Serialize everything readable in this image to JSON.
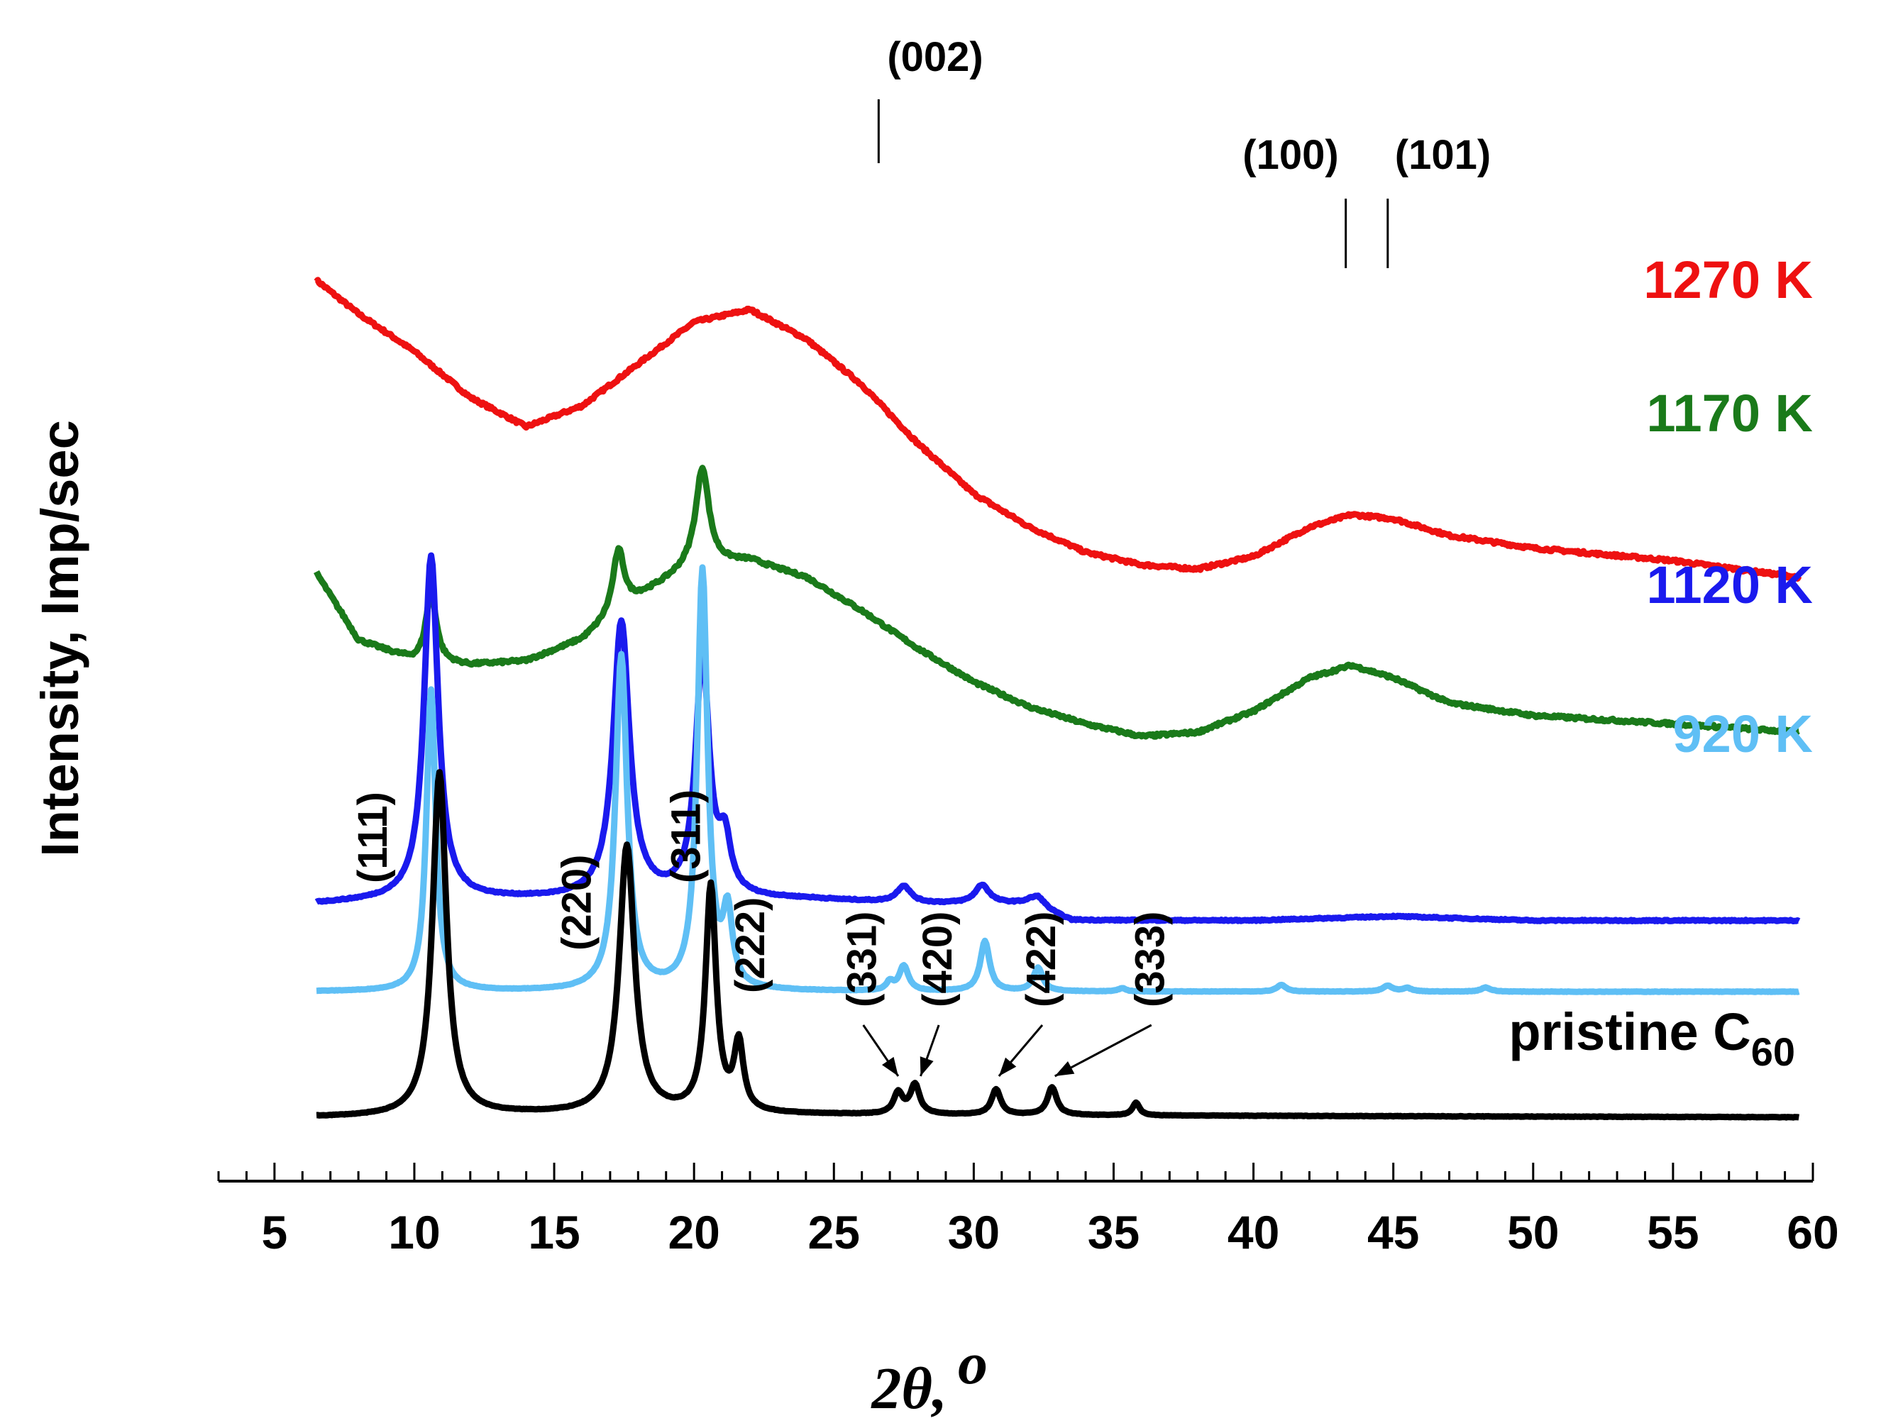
{
  "chart_data": {
    "type": "line",
    "title": "",
    "xlabel": "2θ, °",
    "xlabel_main": "2θ,",
    "xlabel_unit": "o",
    "ylabel": "Intensity, Imp/sec",
    "xlim": [
      3,
      60
    ],
    "x_ticks": [
      5,
      10,
      15,
      20,
      25,
      30,
      35,
      40,
      45,
      50,
      55,
      60
    ],
    "x_tick_labels": [
      "5",
      "10",
      "15",
      "20",
      "25",
      "30",
      "35",
      "40",
      "45",
      "50",
      "55",
      "60"
    ],
    "grid": false,
    "series": [
      {
        "name": "1270 K",
        "color": "#ee1111",
        "offset": 6.6,
        "points": [
          [
            6.5,
            3.4
          ],
          [
            8,
            3.0
          ],
          [
            10,
            2.55
          ],
          [
            12,
            2.0
          ],
          [
            14,
            1.65
          ],
          [
            16,
            1.9
          ],
          [
            18,
            2.4
          ],
          [
            20,
            2.9
          ],
          [
            22,
            3.05
          ],
          [
            24,
            2.7
          ],
          [
            26,
            2.15
          ],
          [
            28,
            1.45
          ],
          [
            30,
            0.85
          ],
          [
            32,
            0.45
          ],
          [
            34,
            0.15
          ],
          [
            36,
            0.0
          ],
          [
            38,
            -0.05
          ],
          [
            40,
            0.1
          ],
          [
            42,
            0.45
          ],
          [
            43.5,
            0.6
          ],
          [
            45,
            0.55
          ],
          [
            47,
            0.35
          ],
          [
            50,
            0.2
          ],
          [
            55,
            0.05
          ],
          [
            59.5,
            -0.15
          ]
        ],
        "peaks": []
      },
      {
        "name": "1170 K",
        "color": "#1a7a1a",
        "offset": 4.9,
        "points": [
          [
            6.5,
            1.6
          ],
          [
            8,
            0.8
          ],
          [
            10,
            0.55
          ],
          [
            12,
            0.5
          ],
          [
            14,
            0.55
          ],
          [
            16,
            0.8
          ],
          [
            18,
            1.3
          ],
          [
            20,
            1.7
          ],
          [
            22,
            1.75
          ],
          [
            24,
            1.55
          ],
          [
            26,
            1.15
          ],
          [
            28,
            0.7
          ],
          [
            30,
            0.3
          ],
          [
            32,
            0.0
          ],
          [
            34,
            -0.2
          ],
          [
            36,
            -0.35
          ],
          [
            38,
            -0.3
          ],
          [
            40,
            -0.05
          ],
          [
            42,
            0.35
          ],
          [
            43.5,
            0.5
          ],
          [
            45,
            0.35
          ],
          [
            47,
            0.05
          ],
          [
            50,
            -0.1
          ],
          [
            55,
            -0.2
          ],
          [
            59.5,
            -0.3
          ]
        ],
        "peaks": [
          {
            "x": 10.6,
            "h": 0.85,
            "w": 0.22
          },
          {
            "x": 17.3,
            "h": 0.75,
            "w": 0.25
          },
          {
            "x": 20.3,
            "h": 1.15,
            "w": 0.28
          }
        ]
      },
      {
        "name": "1120 K",
        "color": "#1a1aee",
        "offset": 2.55,
        "points": [
          [
            6.5,
            0.0
          ],
          [
            10,
            0.05
          ],
          [
            15,
            0.05
          ],
          [
            18,
            0.05
          ],
          [
            22,
            0.05
          ],
          [
            24,
            0.05
          ],
          [
            28,
            0.0
          ],
          [
            32,
            0.0
          ],
          [
            33.5,
            -0.2
          ],
          [
            40,
            -0.2
          ],
          [
            45,
            -0.15
          ],
          [
            50,
            -0.2
          ],
          [
            59.5,
            -0.2
          ]
        ],
        "peaks": [
          {
            "x": 10.6,
            "h": 4.1,
            "w": 0.3
          },
          {
            "x": 17.4,
            "h": 3.3,
            "w": 0.35
          },
          {
            "x": 20.3,
            "h": 2.85,
            "w": 0.3
          },
          {
            "x": 21.1,
            "h": 0.6,
            "w": 0.25
          },
          {
            "x": 27.5,
            "h": 0.2,
            "w": 0.3
          },
          {
            "x": 30.3,
            "h": 0.22,
            "w": 0.3
          },
          {
            "x": 32.3,
            "h": 0.12,
            "w": 0.3
          }
        ]
      },
      {
        "name": "920 K",
        "color": "#5fbff5",
        "offset": 1.5,
        "points": [
          [
            6.5,
            0.0
          ],
          [
            59.5,
            0.0
          ]
        ],
        "peaks": [
          {
            "x": 10.6,
            "h": 3.6,
            "w": 0.2
          },
          {
            "x": 17.4,
            "h": 4.0,
            "w": 0.25
          },
          {
            "x": 20.3,
            "h": 5.0,
            "w": 0.22
          },
          {
            "x": 21.2,
            "h": 0.85,
            "w": 0.2
          },
          {
            "x": 27.0,
            "h": 0.1,
            "w": 0.15
          },
          {
            "x": 27.5,
            "h": 0.3,
            "w": 0.2
          },
          {
            "x": 30.4,
            "h": 0.6,
            "w": 0.2
          },
          {
            "x": 32.3,
            "h": 0.28,
            "w": 0.2
          },
          {
            "x": 35.3,
            "h": 0.04,
            "w": 0.15
          },
          {
            "x": 41.0,
            "h": 0.08,
            "w": 0.2
          },
          {
            "x": 44.8,
            "h": 0.07,
            "w": 0.2
          },
          {
            "x": 45.5,
            "h": 0.04,
            "w": 0.2
          },
          {
            "x": 48.3,
            "h": 0.05,
            "w": 0.2
          }
        ]
      },
      {
        "name": "pristine C60",
        "label_main": "pristine C",
        "label_sub": "60",
        "color": "#000000",
        "offset": 0.0,
        "points": [
          [
            6.5,
            0.0
          ],
          [
            9,
            0.0
          ],
          [
            14,
            0.03
          ],
          [
            24,
            0.03
          ],
          [
            59.5,
            0.0
          ]
        ],
        "peaks": [
          {
            "x": 10.9,
            "h": 4.1,
            "w": 0.3
          },
          {
            "x": 17.6,
            "h": 3.2,
            "w": 0.33
          },
          {
            "x": 20.6,
            "h": 2.7,
            "w": 0.23
          },
          {
            "x": 21.6,
            "h": 0.8,
            "w": 0.2
          },
          {
            "x": 27.3,
            "h": 0.25,
            "w": 0.2
          },
          {
            "x": 27.9,
            "h": 0.35,
            "w": 0.2
          },
          {
            "x": 30.8,
            "h": 0.3,
            "w": 0.2
          },
          {
            "x": 32.8,
            "h": 0.33,
            "w": 0.2
          },
          {
            "x": 35.8,
            "h": 0.15,
            "w": 0.15
          }
        ]
      }
    ],
    "annotations": {
      "graphite": [
        {
          "label": "(002)",
          "x": 26.6
        },
        {
          "label": "(100)",
          "x": 43.3
        },
        {
          "label": "(101)",
          "x": 44.8
        }
      ],
      "c60": [
        {
          "label": "(111)",
          "x": 8.5
        },
        {
          "label": "(220)",
          "x": 15.8
        },
        {
          "label": "(311)",
          "x": 19.7
        },
        {
          "label": "(222)",
          "x": 22.0
        },
        {
          "label": "(331)",
          "x": 26.0,
          "arrow_to": 27.3
        },
        {
          "label": "(420)",
          "x": 28.7,
          "arrow_to": 28.1
        },
        {
          "label": "(422)",
          "x": 32.4,
          "arrow_to": 30.9
        },
        {
          "label": "(333)",
          "x": 36.3,
          "arrow_to": 32.9
        }
      ]
    }
  }
}
